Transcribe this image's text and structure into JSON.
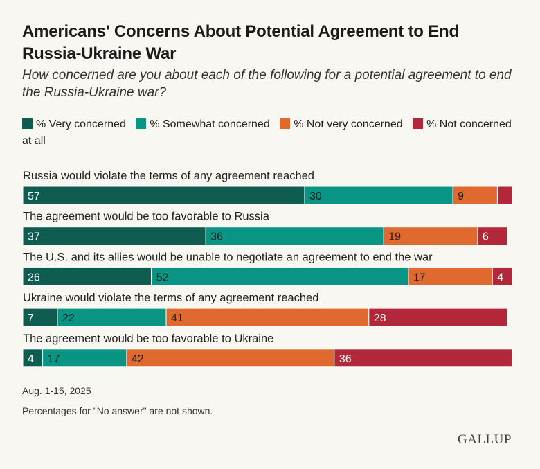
{
  "header": {
    "title": "Americans' Concerns About Potential Agreement to End Russia-Ukraine War",
    "subtitle": "How concerned are you about each of the following for a potential agreement to end the Russia-Ukraine war?"
  },
  "footer": {
    "date": "Aug. 1-15, 2025",
    "note": "Percentages for \"No answer\" are not shown.",
    "logo": "GALLUP"
  },
  "chart_data": {
    "type": "bar",
    "orientation": "horizontal",
    "stacked": true,
    "xlim": [
      0,
      100
    ],
    "legend_position": "top",
    "categories": [
      "Russia would violate the terms of any agreement reached",
      "The agreement would be too favorable to Russia",
      "The U.S. and its allies would be unable to negotiate an agreement to end the war",
      "Ukraine would violate the terms of any agreement reached",
      "The agreement would be too favorable to Ukraine"
    ],
    "series": [
      {
        "name": "% Very concerned",
        "color": "#0f5c50",
        "label_color": "#ffffff",
        "values": [
          57,
          37,
          26,
          7,
          4
        ]
      },
      {
        "name": "% Somewhat concerned",
        "color": "#0a9484",
        "label_color": "#1b1b1b",
        "values": [
          30,
          36,
          52,
          22,
          17
        ]
      },
      {
        "name": "% Not very concerned",
        "color": "#e0692f",
        "label_color": "#1b1b1b",
        "values": [
          9,
          19,
          17,
          41,
          42
        ]
      },
      {
        "name": "% Not concerned at all",
        "color": "#b2283a",
        "label_color": "#ffffff",
        "values": [
          3,
          6,
          4,
          28,
          36
        ]
      }
    ],
    "data_labels": [
      [
        "57",
        "30",
        "9",
        ""
      ],
      [
        "37",
        "36",
        "19",
        "6"
      ],
      [
        "26",
        "52",
        "17",
        "4"
      ],
      [
        "7",
        "22",
        "41",
        "28"
      ],
      [
        "4",
        "17",
        "42",
        "36"
      ]
    ]
  }
}
